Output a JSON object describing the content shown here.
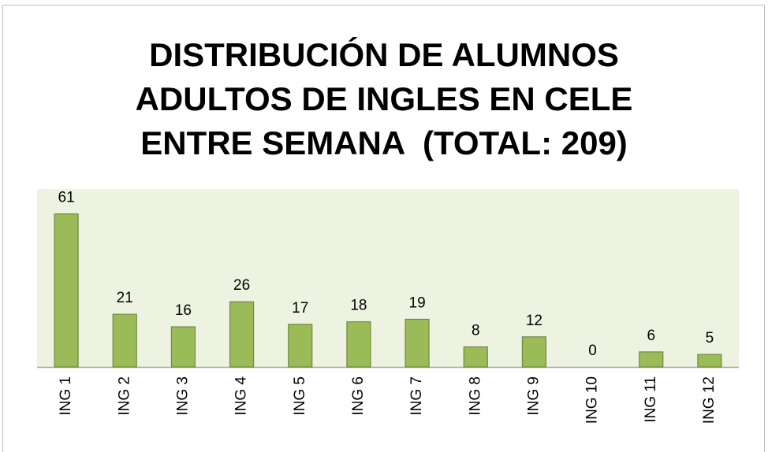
{
  "chart_data": {
    "type": "bar",
    "title": "DISTRIBUCIÓN DE ALUMNOS ADULTOS DE INGLES EN CELE ENTRE SEMANA  (TOTAL: 209)",
    "categories": [
      "ING 1",
      "ING 2",
      "ING 3",
      "ING 4",
      "ING 5",
      "ING 6",
      "ING 7",
      "ING 8",
      "ING 9",
      "ING 10",
      "ING 11",
      "ING 12"
    ],
    "values": [
      61,
      21,
      16,
      26,
      17,
      18,
      19,
      8,
      12,
      0,
      6,
      5
    ],
    "color": "#9bbb59",
    "ylim": [
      0,
      70
    ]
  }
}
